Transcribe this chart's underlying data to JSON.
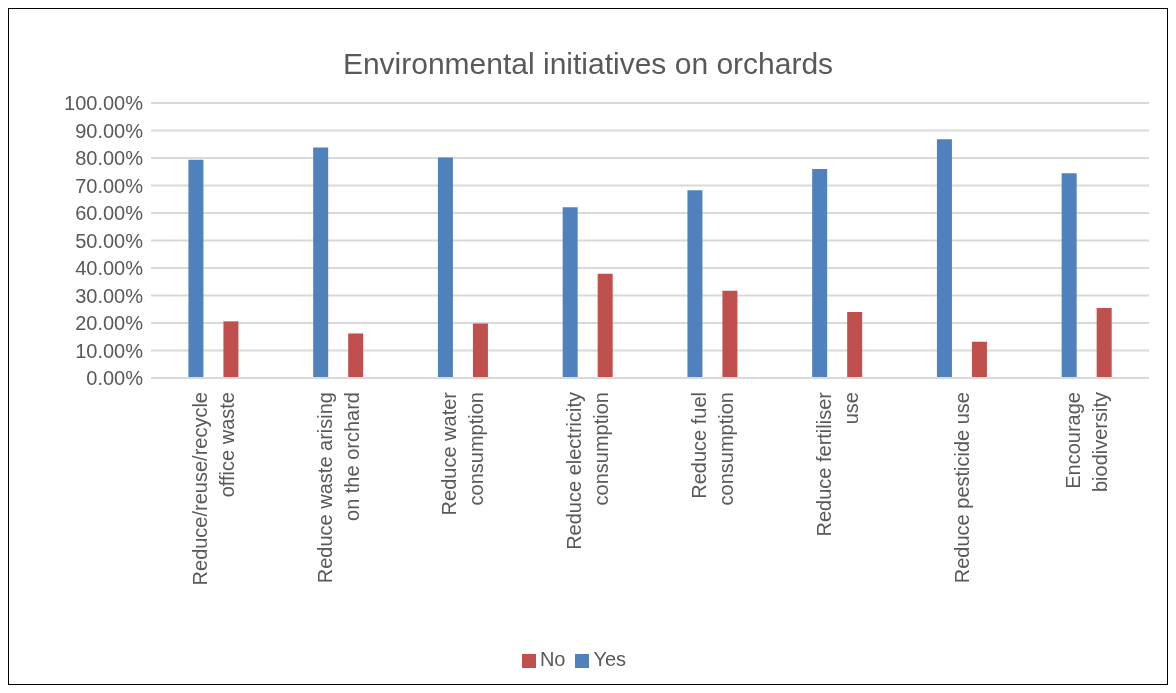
{
  "chart_data": {
    "type": "bar",
    "title": "Environmental initiatives on orchards",
    "categories": [
      "Reduce/reuse/recycle office waste",
      "Reduce waste arising on the orchard",
      "Reduce water consumption",
      "Reduce electricity consumption",
      "Reduce fuel consumption",
      "Reduce fertiliser use",
      "Reduce pesticide use",
      "Encourage biodiversity"
    ],
    "series": [
      {
        "name": "Yes",
        "color": "#4f81bd",
        "values": [
          79.4,
          83.8,
          80.2,
          62.1,
          68.3,
          76.0,
          86.8,
          74.5
        ]
      },
      {
        "name": "No",
        "color": "#c0504d",
        "values": [
          20.6,
          16.2,
          19.8,
          37.9,
          31.7,
          24.0,
          13.2,
          25.5
        ]
      }
    ],
    "ylim": [
      0,
      100
    ],
    "yticks": [
      {
        "value": 0,
        "label": "0.00%"
      },
      {
        "value": 10,
        "label": "10.00%"
      },
      {
        "value": 20,
        "label": "20.00%"
      },
      {
        "value": 30,
        "label": "30.00%"
      },
      {
        "value": 40,
        "label": "40.00%"
      },
      {
        "value": 50,
        "label": "50.00%"
      },
      {
        "value": 60,
        "label": "60.00%"
      },
      {
        "value": 70,
        "label": "70.00%"
      },
      {
        "value": 80,
        "label": "80.00%"
      },
      {
        "value": 90,
        "label": "90.00%"
      },
      {
        "value": 100,
        "label": "100.00%"
      }
    ],
    "grid": "y",
    "legend": "bottom"
  }
}
